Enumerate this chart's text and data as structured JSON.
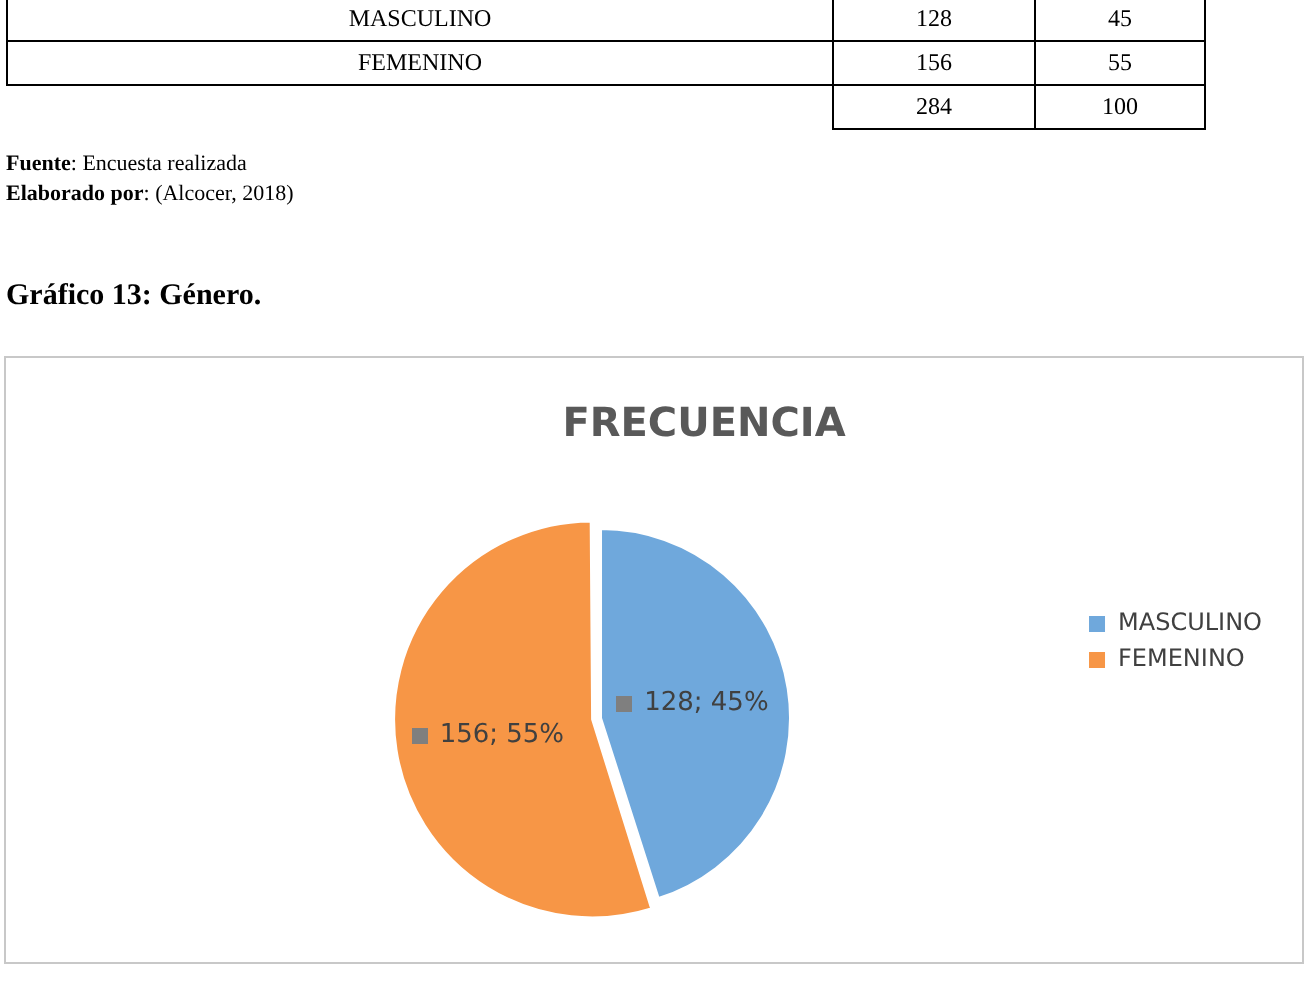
{
  "chart_data": {
    "type": "pie",
    "title": "FRECUENCIA",
    "categories": [
      "MASCULINO",
      "FEMENINO"
    ],
    "values": [
      128,
      156
    ],
    "colors": [
      "#6fa8dc",
      "#f79646"
    ],
    "value_labels": [
      "128; 45%",
      "156; 55%"
    ],
    "legend": "right",
    "annotations": [
      "128",
      "45",
      "156",
      "55",
      "284",
      "100",
      "Fuente: Encuesta realizada",
      "Elaborado por: (Alcocer, 2018)",
      "Gráfico 13: Género."
    ]
  }
}
